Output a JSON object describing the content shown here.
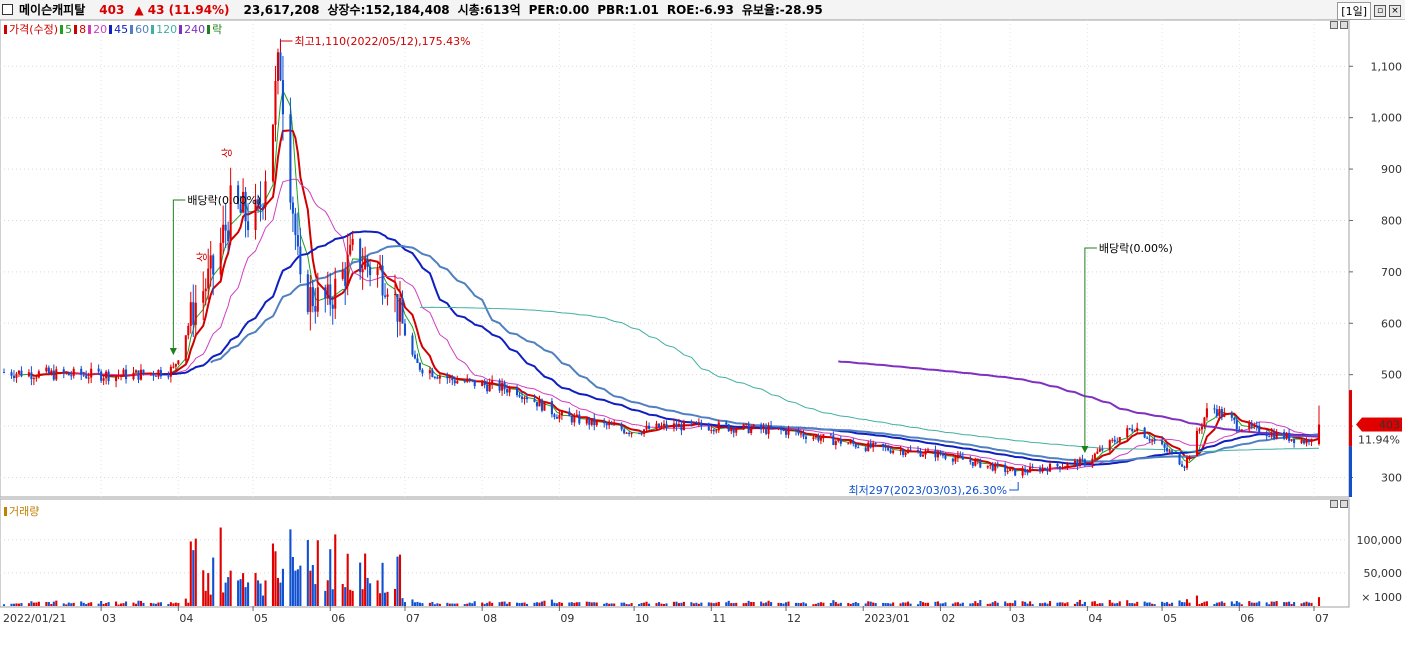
{
  "header": {
    "stock_name": "메이슨캐피탈",
    "price": "403",
    "change": "▲ 43 (11.94%)",
    "volume": "23,617,208",
    "listed": "상장수:152,184,408",
    "market_cap": "시총:613억",
    "per": "PER:0.00",
    "pbr": "PBR:1.01",
    "roe": "ROE:-6.93",
    "float_ratio": "유보율:-28.95",
    "period": "[1일]"
  },
  "legend": [
    {
      "label": "가격(수정)",
      "color": "#d00000"
    },
    {
      "label": "5",
      "color": "#20a020"
    },
    {
      "label": "8",
      "color": "#d00000"
    },
    {
      "label": "20",
      "color": "#d040c0"
    },
    {
      "label": "45",
      "color": "#1020c0"
    },
    {
      "label": "60",
      "color": "#5080c0"
    },
    {
      "label": "120",
      "color": "#40b0a0"
    },
    {
      "label": "240",
      "color": "#8030c0"
    },
    {
      "label": "락",
      "color": "#208020"
    }
  ],
  "volume_label": "거래량",
  "annotations": {
    "high": "최고1,110(2022/05/12),175.43%",
    "low": "최저297(2023/03/03),26.30%",
    "dividend1": "배당락(0.00%)",
    "dividend2": "배당락(0.00%)",
    "up1": "상",
    "up2": "상"
  },
  "last_price_tag": {
    "price": "403",
    "pct": "11.94%"
  },
  "colors": {
    "up": "#e00000",
    "down": "#1050d0"
  },
  "chart_data": {
    "type": "candlestick",
    "price_axis": {
      "ticks": [
        300,
        400,
        500,
        600,
        700,
        800,
        900,
        1000,
        1100
      ],
      "tick_labels": [
        "300",
        "400",
        "500",
        "600",
        "700",
        "800",
        "900",
        "1,000",
        "1,100"
      ],
      "ylim": [
        262,
        1190
      ]
    },
    "volume_axis": {
      "ticks": [
        50000,
        100000
      ],
      "tick_labels": [
        "50,000",
        "100,000"
      ],
      "unit": "× 1000",
      "ylim": [
        0,
        160000
      ]
    },
    "x_axis_labels": [
      "2022/01/21",
      "03",
      "04",
      "05",
      "06",
      "07",
      "08",
      "09",
      "10",
      "11",
      "12",
      "2023/01",
      "02",
      "03",
      "04",
      "05",
      "06",
      "07"
    ],
    "ohlc_keypoints": [
      {
        "date": "2022/01/21",
        "close": 505
      },
      {
        "date": "2022/02/15",
        "close": 500
      },
      {
        "date": "2022/03/15",
        "close": 500
      },
      {
        "date": "2022/03/30",
        "close": 510
      },
      {
        "date": "2022/04/08",
        "close": 640
      },
      {
        "date": "2022/04/15",
        "close": 700
      },
      {
        "date": "2022/04/22",
        "close": 820
      },
      {
        "date": "2022/05/03",
        "close": 800
      },
      {
        "date": "2022/05/12",
        "close": 1110
      },
      {
        "date": "2022/05/20",
        "close": 660
      },
      {
        "date": "2022/05/31",
        "close": 640
      },
      {
        "date": "2022/06/10",
        "close": 730
      },
      {
        "date": "2022/06/24",
        "close": 690
      },
      {
        "date": "2022/07/05",
        "close": 520
      },
      {
        "date": "2022/07/20",
        "close": 490
      },
      {
        "date": "2022/08/15",
        "close": 470
      },
      {
        "date": "2022/09/01",
        "close": 420
      },
      {
        "date": "2022/09/30",
        "close": 390
      },
      {
        "date": "2022/10/15",
        "close": 400
      },
      {
        "date": "2022/11/01",
        "close": 400
      },
      {
        "date": "2022/12/01",
        "close": 390
      },
      {
        "date": "2023/01/02",
        "close": 360
      },
      {
        "date": "2023/02/01",
        "close": 345
      },
      {
        "date": "2023/03/03",
        "close": 310
      },
      {
        "date": "2023/03/31",
        "close": 330
      },
      {
        "date": "2023/04/20",
        "close": 400
      },
      {
        "date": "2023/05/10",
        "close": 325
      },
      {
        "date": "2023/05/20",
        "close": 440
      },
      {
        "date": "2023/06/01",
        "close": 400
      },
      {
        "date": "2023/06/28",
        "close": 370
      },
      {
        "date": "2023/07/03",
        "close": 403
      }
    ],
    "moving_averages": [
      "5",
      "8",
      "20",
      "45",
      "60",
      "120",
      "240"
    ],
    "high": {
      "price": 1110,
      "date": "2022/05/12"
    },
    "low": {
      "price": 297,
      "date": "2023/03/03"
    },
    "last_close": 403,
    "grid": true
  }
}
